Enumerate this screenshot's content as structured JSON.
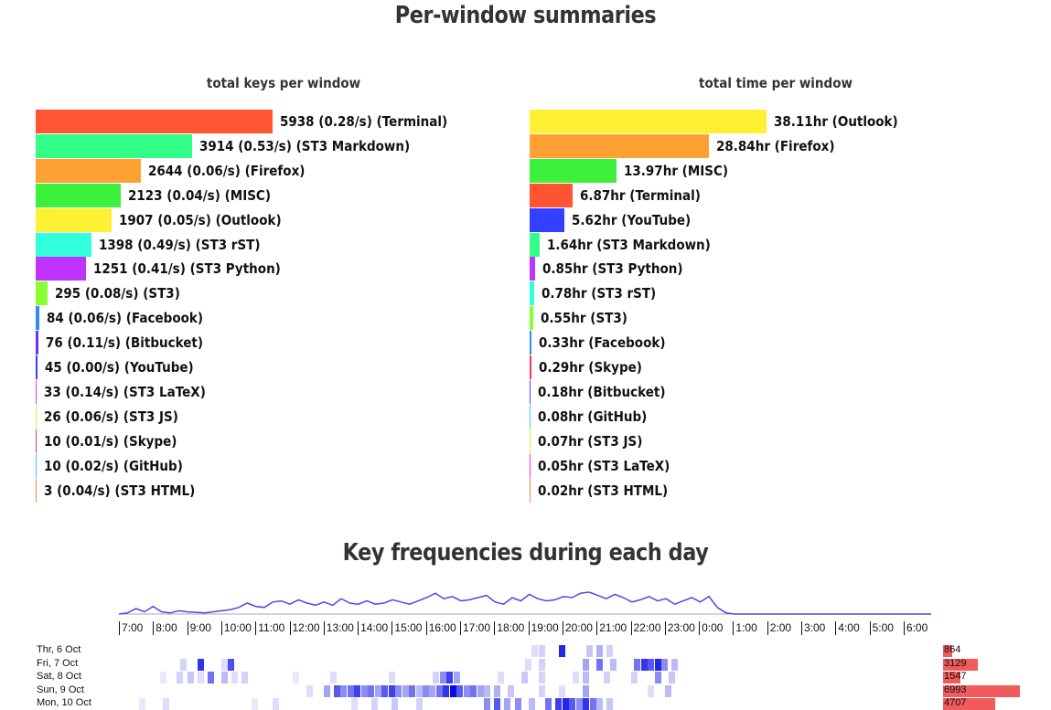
{
  "page": {
    "title": "Per-window summaries",
    "frequency_title": "Key frequencies during each day"
  },
  "chart_data": [
    {
      "type": "bar",
      "orientation": "horizontal",
      "title": "total keys per window",
      "bars": [
        {
          "value": 5938,
          "label": "5938 (0.28/s) (Terminal)",
          "color": "#ff5533"
        },
        {
          "value": 3914,
          "label": "3914 (0.53/s) (ST3 Markdown)",
          "color": "#33ff88"
        },
        {
          "value": 2644,
          "label": "2644 (0.06/s) (Firefox)",
          "color": "#ffa033"
        },
        {
          "value": 2123,
          "label": "2123 (0.04/s) (MISC)",
          "color": "#3cf03c"
        },
        {
          "value": 1907,
          "label": "1907 (0.05/s) (Outlook)",
          "color": "#fff033"
        },
        {
          "value": 1398,
          "label": "1398 (0.49/s) (ST3 rST)",
          "color": "#33ffdd"
        },
        {
          "value": 1251,
          "label": "1251 (0.41/s) (ST3 Python)",
          "color": "#c033ff"
        },
        {
          "value": 295,
          "label": "295 (0.08/s) (ST3)",
          "color": "#88ff33"
        },
        {
          "value": 84,
          "label": "84 (0.06/s) (Facebook)",
          "color": "#3388ff"
        },
        {
          "value": 76,
          "label": "76 (0.11/s) (Bitbucket)",
          "color": "#6633ff"
        },
        {
          "value": 45,
          "label": "45 (0.00/s) (YouTube)",
          "color": "#3340ff"
        },
        {
          "value": 33,
          "label": "33 (0.14/s) (ST3 LaTeX)",
          "color": "#ff33cc"
        },
        {
          "value": 26,
          "label": "26 (0.06/s) (ST3 JS)",
          "color": "#ccff33"
        },
        {
          "value": 10,
          "label": "10 (0.01/s) (Skype)",
          "color": "#ff3366"
        },
        {
          "value": 10,
          "label": "10 (0.02/s) (GitHub)",
          "color": "#33ccff"
        },
        {
          "value": 3,
          "label": "3 (0.04/s) (ST3 HTML)",
          "color": "#ff8833"
        }
      ]
    },
    {
      "type": "bar",
      "orientation": "horizontal",
      "title": "total time per window",
      "bars": [
        {
          "value": 38.11,
          "label": "38.11hr (Outlook)",
          "color": "#fff033"
        },
        {
          "value": 28.84,
          "label": "28.84hr (Firefox)",
          "color": "#ffa033"
        },
        {
          "value": 13.97,
          "label": "13.97hr (MISC)",
          "color": "#3cf03c"
        },
        {
          "value": 6.87,
          "label": "6.87hr (Terminal)",
          "color": "#ff5533"
        },
        {
          "value": 5.62,
          "label": "5.62hr (YouTube)",
          "color": "#3340ff"
        },
        {
          "value": 1.64,
          "label": "1.64hr (ST3 Markdown)",
          "color": "#33ff88"
        },
        {
          "value": 0.85,
          "label": "0.85hr (ST3 Python)",
          "color": "#c033ff"
        },
        {
          "value": 0.78,
          "label": "0.78hr (ST3 rST)",
          "color": "#33ffdd"
        },
        {
          "value": 0.55,
          "label": "0.55hr (ST3)",
          "color": "#88ff33"
        },
        {
          "value": 0.33,
          "label": "0.33hr (Facebook)",
          "color": "#3388ff"
        },
        {
          "value": 0.29,
          "label": "0.29hr (Skype)",
          "color": "#ff3366"
        },
        {
          "value": 0.18,
          "label": "0.18hr (Bitbucket)",
          "color": "#6633ff"
        },
        {
          "value": 0.08,
          "label": "0.08hr (GitHub)",
          "color": "#33ccff"
        },
        {
          "value": 0.07,
          "label": "0.07hr (ST3 JS)",
          "color": "#ccff33"
        },
        {
          "value": 0.05,
          "label": "0.05hr (ST3 LaTeX)",
          "color": "#ff33cc"
        },
        {
          "value": 0.02,
          "label": "0.02hr (ST3 HTML)",
          "color": "#ff8833"
        }
      ]
    },
    {
      "type": "heatmap",
      "title": "Key frequencies during each day",
      "hours": [
        "7:00",
        "8:00",
        "9:00",
        "10:00",
        "11:00",
        "12:00",
        "13:00",
        "14:00",
        "15:00",
        "16:00",
        "17:00",
        "18:00",
        "19:00",
        "20:00",
        "21:00",
        "22:00",
        "23:00",
        "0:00",
        "1:00",
        "2:00",
        "3:00",
        "4:00",
        "5:00",
        "6:00"
      ],
      "aggregate_line": [
        0,
        0.05,
        0.25,
        0.1,
        0.35,
        0.1,
        0.05,
        0.15,
        0.1,
        0.08,
        0.05,
        0.1,
        0.15,
        0.2,
        0.3,
        0.5,
        0.35,
        0.3,
        0.55,
        0.6,
        0.45,
        0.65,
        0.5,
        0.4,
        0.55,
        0.4,
        0.7,
        0.5,
        0.45,
        0.6,
        0.45,
        0.5,
        0.65,
        0.55,
        0.45,
        0.6,
        0.75,
        0.95,
        0.7,
        0.8,
        0.6,
        0.65,
        0.75,
        0.85,
        0.55,
        0.45,
        0.75,
        0.6,
        0.9,
        0.7,
        0.6,
        0.65,
        0.8,
        0.75,
        0.95,
        1.0,
        0.85,
        0.7,
        0.9,
        0.75,
        0.55,
        0.65,
        0.8,
        0.6,
        0.7,
        0.45,
        0.6,
        0.75,
        0.55,
        0.8,
        0.3,
        0.05,
        0,
        0,
        0,
        0,
        0,
        0,
        0,
        0,
        0,
        0,
        0,
        0,
        0,
        0,
        0,
        0,
        0,
        0,
        0,
        0,
        0,
        0,
        0,
        0
      ],
      "days": [
        {
          "label": "Thr, 6 Oct",
          "total": 864,
          "cells": [
            [
              12.1,
              0.15
            ],
            [
              12.3,
              0.2
            ],
            [
              12.9,
              0.9
            ],
            [
              13.7,
              0.25
            ],
            [
              14.0,
              0.35
            ],
            [
              14.3,
              0.2
            ]
          ]
        },
        {
          "label": "Fri, 7 Oct",
          "total": 3129,
          "cells": [
            [
              1.8,
              0.2
            ],
            [
              2.3,
              0.85
            ],
            [
              3.0,
              0.15
            ],
            [
              3.2,
              0.75
            ],
            [
              11.9,
              0.15
            ],
            [
              12.3,
              0.2
            ],
            [
              13.6,
              0.4
            ],
            [
              14.0,
              0.6
            ],
            [
              14.4,
              0.3
            ],
            [
              15.1,
              0.6
            ],
            [
              15.3,
              0.85
            ],
            [
              15.5,
              0.7
            ],
            [
              15.7,
              0.9
            ],
            [
              15.9,
              0.5
            ],
            [
              16.2,
              0.3
            ]
          ]
        },
        {
          "label": "Sat, 8 Oct",
          "total": 1547,
          "cells": [
            [
              1.2,
              0.1
            ],
            [
              1.7,
              0.2
            ],
            [
              2.0,
              0.25
            ],
            [
              2.3,
              0.15
            ],
            [
              2.6,
              0.6
            ],
            [
              3.0,
              0.3
            ],
            [
              3.3,
              0.15
            ],
            [
              3.6,
              0.2
            ],
            [
              5.1,
              0.1
            ],
            [
              6.2,
              0.15
            ],
            [
              7.9,
              0.15
            ],
            [
              9.2,
              0.2
            ],
            [
              9.4,
              0.5
            ],
            [
              9.6,
              0.8
            ],
            [
              9.8,
              0.4
            ],
            [
              11.1,
              0.15
            ],
            [
              11.8,
              0.25
            ],
            [
              12.3,
              0.2
            ],
            [
              13.3,
              0.15
            ],
            [
              13.6,
              0.3
            ],
            [
              14.2,
              0.2
            ],
            [
              15.0,
              0.2
            ],
            [
              15.7,
              0.5
            ],
            [
              16.1,
              0.25
            ]
          ]
        },
        {
          "label": "Sun, 9 Oct",
          "total": 6993,
          "cells": [
            [
              5.5,
              0.15
            ],
            [
              6.0,
              0.4
            ],
            [
              6.3,
              0.7
            ],
            [
              6.5,
              0.5
            ],
            [
              6.7,
              0.6
            ],
            [
              6.9,
              0.8
            ],
            [
              7.1,
              0.5
            ],
            [
              7.3,
              0.6
            ],
            [
              7.5,
              0.4
            ],
            [
              7.7,
              0.7
            ],
            [
              7.9,
              0.8
            ],
            [
              8.1,
              0.5
            ],
            [
              8.3,
              0.4
            ],
            [
              8.5,
              0.6
            ],
            [
              8.7,
              0.3
            ],
            [
              8.9,
              0.5
            ],
            [
              9.1,
              0.4
            ],
            [
              9.3,
              0.6
            ],
            [
              9.5,
              0.85
            ],
            [
              9.7,
              1.0
            ],
            [
              9.9,
              0.7
            ],
            [
              10.1,
              0.5
            ],
            [
              10.3,
              0.6
            ],
            [
              10.5,
              0.4
            ],
            [
              10.7,
              0.3
            ],
            [
              11.0,
              0.35
            ],
            [
              11.4,
              0.25
            ],
            [
              12.3,
              0.2
            ],
            [
              12.9,
              0.15
            ],
            [
              13.6,
              0.4
            ],
            [
              15.5,
              0.15
            ],
            [
              16.0,
              0.3
            ]
          ]
        },
        {
          "label": "Mon, 10 Oct",
          "total": 4707,
          "cells": [
            [
              0.6,
              0.1
            ],
            [
              1.3,
              0.15
            ],
            [
              3.9,
              0.1
            ],
            [
              4.5,
              0.15
            ],
            [
              6.8,
              0.15
            ],
            [
              7.4,
              0.2
            ],
            [
              8.0,
              0.25
            ],
            [
              8.7,
              0.2
            ],
            [
              10.7,
              0.5
            ],
            [
              11.0,
              0.7
            ],
            [
              11.3,
              0.4
            ],
            [
              11.6,
              0.5
            ],
            [
              12.0,
              0.3
            ],
            [
              12.5,
              0.6
            ],
            [
              12.8,
              0.8
            ],
            [
              13.0,
              0.9
            ],
            [
              13.2,
              0.7
            ],
            [
              13.4,
              0.5
            ],
            [
              13.6,
              0.85
            ],
            [
              13.8,
              0.6
            ],
            [
              14.0,
              0.3
            ],
            [
              14.3,
              0.25
            ]
          ]
        }
      ]
    }
  ]
}
